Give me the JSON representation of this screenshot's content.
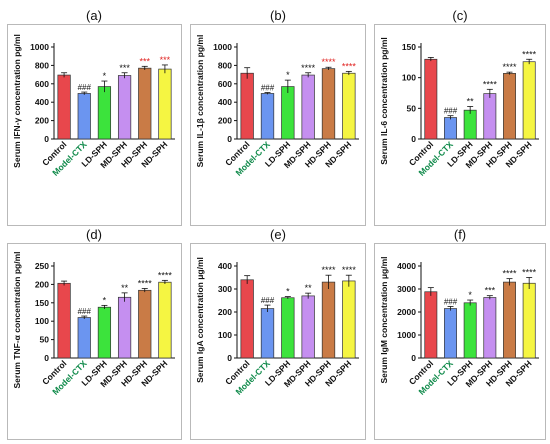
{
  "chart_data": [
    {
      "type": "bar",
      "panel_label": "(a)",
      "ylabel": "Serum IFN-γ  concentration pg/ml",
      "ylim": [
        0,
        1000
      ],
      "yticks": [
        0,
        200,
        400,
        600,
        800,
        1000
      ],
      "categories": [
        "Control",
        "Model-CTX",
        "LD-SPH",
        "MD-SPH",
        "HD-SPH",
        "ND-SPH"
      ],
      "values": [
        695,
        495,
        570,
        690,
        770,
        760
      ],
      "errors": [
        25,
        15,
        60,
        30,
        20,
        45
      ],
      "annotations": [
        "",
        "###",
        "*",
        "***",
        "***",
        "***"
      ]
    },
    {
      "type": "bar",
      "panel_label": "(b)",
      "ylabel": "Serum IL-1β  concentration pg/ml",
      "ylim": [
        0,
        1000
      ],
      "yticks": [
        0,
        200,
        400,
        600,
        800,
        1000
      ],
      "categories": [
        "Control",
        "Model-CTX",
        "LD-SPH",
        "MD-SPH",
        "HD-SPH",
        "ND-SPH"
      ],
      "values": [
        715,
        495,
        570,
        695,
        765,
        715
      ],
      "errors": [
        60,
        10,
        70,
        25,
        15,
        20
      ],
      "annotations": [
        "",
        "###",
        "*",
        "****",
        "****",
        "****"
      ]
    },
    {
      "type": "bar",
      "panel_label": "(c)",
      "ylabel": "Serum IL-6  concentration pg/ml",
      "ylim": [
        0,
        150
      ],
      "yticks": [
        0,
        50,
        100,
        150
      ],
      "categories": [
        "Control",
        "Model-CTX",
        "LD-SPH",
        "MD-SPH",
        "HD-SPH",
        "ND-SPH"
      ],
      "values": [
        130,
        35,
        47,
        74,
        107,
        126
      ],
      "errors": [
        3,
        3,
        6,
        7,
        2,
        4
      ],
      "annotations": [
        "",
        "###",
        "**",
        "****",
        "****",
        "****"
      ]
    },
    {
      "type": "bar",
      "panel_label": "(d)",
      "ylabel": "Serum TNF-α  concentration pg/ml",
      "ylim": [
        0,
        250
      ],
      "yticks": [
        0,
        50,
        100,
        150,
        200,
        250
      ],
      "categories": [
        "Control",
        "Model-CTX",
        "LD-SPH",
        "MD-SPH",
        "HD-SPH",
        "ND-SPH"
      ],
      "values": [
        203,
        110,
        138,
        165,
        184,
        206
      ],
      "errors": [
        6,
        4,
        5,
        12,
        5,
        5
      ],
      "annotations": [
        "",
        "###",
        "*",
        "**",
        "****",
        "****"
      ]
    },
    {
      "type": "bar",
      "panel_label": "(e)",
      "ylabel": "Serum IgA concentration μg/ml",
      "ylim": [
        0,
        400
      ],
      "yticks": [
        0,
        100,
        200,
        300,
        400
      ],
      "categories": [
        "Control",
        "Model-CTX",
        "LD-SPH",
        "MD-SPH",
        "HD-SPH",
        "ND-SPH"
      ],
      "values": [
        340,
        215,
        262,
        270,
        330,
        335
      ],
      "errors": [
        18,
        15,
        5,
        12,
        30,
        25
      ],
      "annotations": [
        "",
        "###",
        "*",
        "**",
        "****",
        "****"
      ]
    },
    {
      "type": "bar",
      "panel_label": "(f)",
      "ylabel": "Serum IgM concentration μg/ml",
      "ylim": [
        0,
        4000
      ],
      "yticks": [
        0,
        1000,
        2000,
        3000,
        4000
      ],
      "categories": [
        "Control",
        "Model-CTX",
        "LD-SPH",
        "MD-SPH",
        "HD-SPH",
        "ND-SPH"
      ],
      "values": [
        2880,
        2150,
        2400,
        2630,
        3300,
        3250
      ],
      "errors": [
        180,
        90,
        120,
        80,
        150,
        250
      ],
      "annotations": [
        "",
        "###",
        "*",
        "***",
        "****",
        "****"
      ]
    }
  ],
  "colors": {
    "bars": [
      "#e8474c",
      "#6b95f0",
      "#3ce33c",
      "#c58ff0",
      "#c97b46",
      "#f5f542"
    ],
    "annotation_hash": "#111111",
    "annotation_star_default": "#111111",
    "annotation_star_red": "#e0201e",
    "category_model_ctx": "#0f8a4a"
  }
}
